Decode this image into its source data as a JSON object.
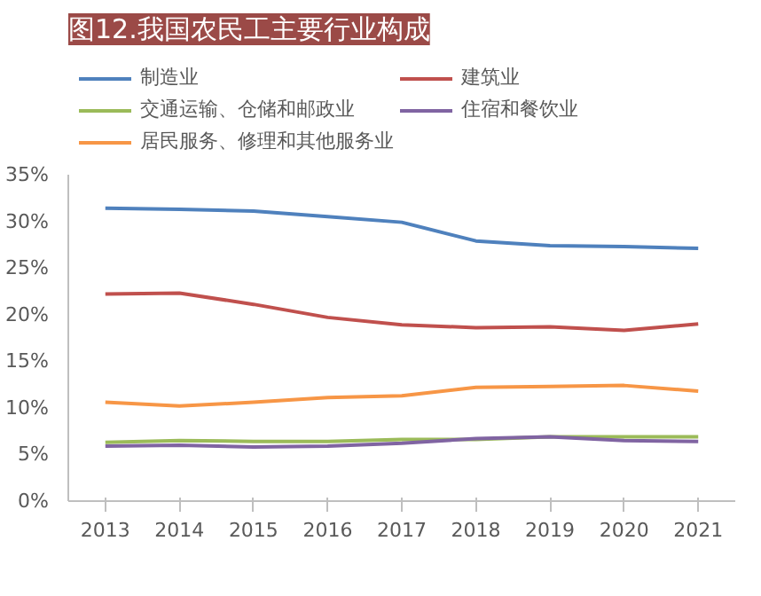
{
  "chart_data": {
    "type": "line",
    "title": "图12.我国农民工主要行业构成",
    "categories": [
      "2013",
      "2014",
      "2015",
      "2016",
      "2017",
      "2018",
      "2019",
      "2020",
      "2021"
    ],
    "series": [
      {
        "name": "制造业",
        "color": "#4f81bd",
        "values": [
          31.4,
          31.3,
          31.1,
          30.5,
          29.9,
          27.9,
          27.4,
          27.3,
          27.1
        ]
      },
      {
        "name": "建筑业",
        "color": "#c0504d",
        "values": [
          22.2,
          22.3,
          21.1,
          19.7,
          18.9,
          18.6,
          18.7,
          18.3,
          19.0
        ]
      },
      {
        "name": "交通运输、仓储和邮政业",
        "color": "#9bbb59",
        "values": [
          6.3,
          6.5,
          6.4,
          6.4,
          6.6,
          6.6,
          6.9,
          6.9,
          6.9
        ]
      },
      {
        "name": "住宿和餐饮业",
        "color": "#8064a2",
        "values": [
          5.9,
          6.0,
          5.8,
          5.9,
          6.2,
          6.7,
          6.9,
          6.5,
          6.4
        ]
      },
      {
        "name": "居民服务、修理和其他服务业",
        "color": "#f79646",
        "values": [
          10.6,
          10.2,
          10.6,
          11.1,
          11.3,
          12.2,
          12.3,
          12.4,
          11.8
        ]
      }
    ],
    "ylim": [
      0,
      35
    ],
    "yticks": [
      {
        "value": 0,
        "label": "0%"
      },
      {
        "value": 5,
        "label": "5%"
      },
      {
        "value": 10,
        "label": "10%"
      },
      {
        "value": 15,
        "label": "15%"
      },
      {
        "value": 20,
        "label": "20%"
      },
      {
        "value": 25,
        "label": "25%"
      },
      {
        "value": 30,
        "label": "30%"
      },
      {
        "value": 35,
        "label": "35%"
      }
    ],
    "grid": false,
    "legend": "top",
    "marker": "none",
    "line_style": "solid"
  }
}
